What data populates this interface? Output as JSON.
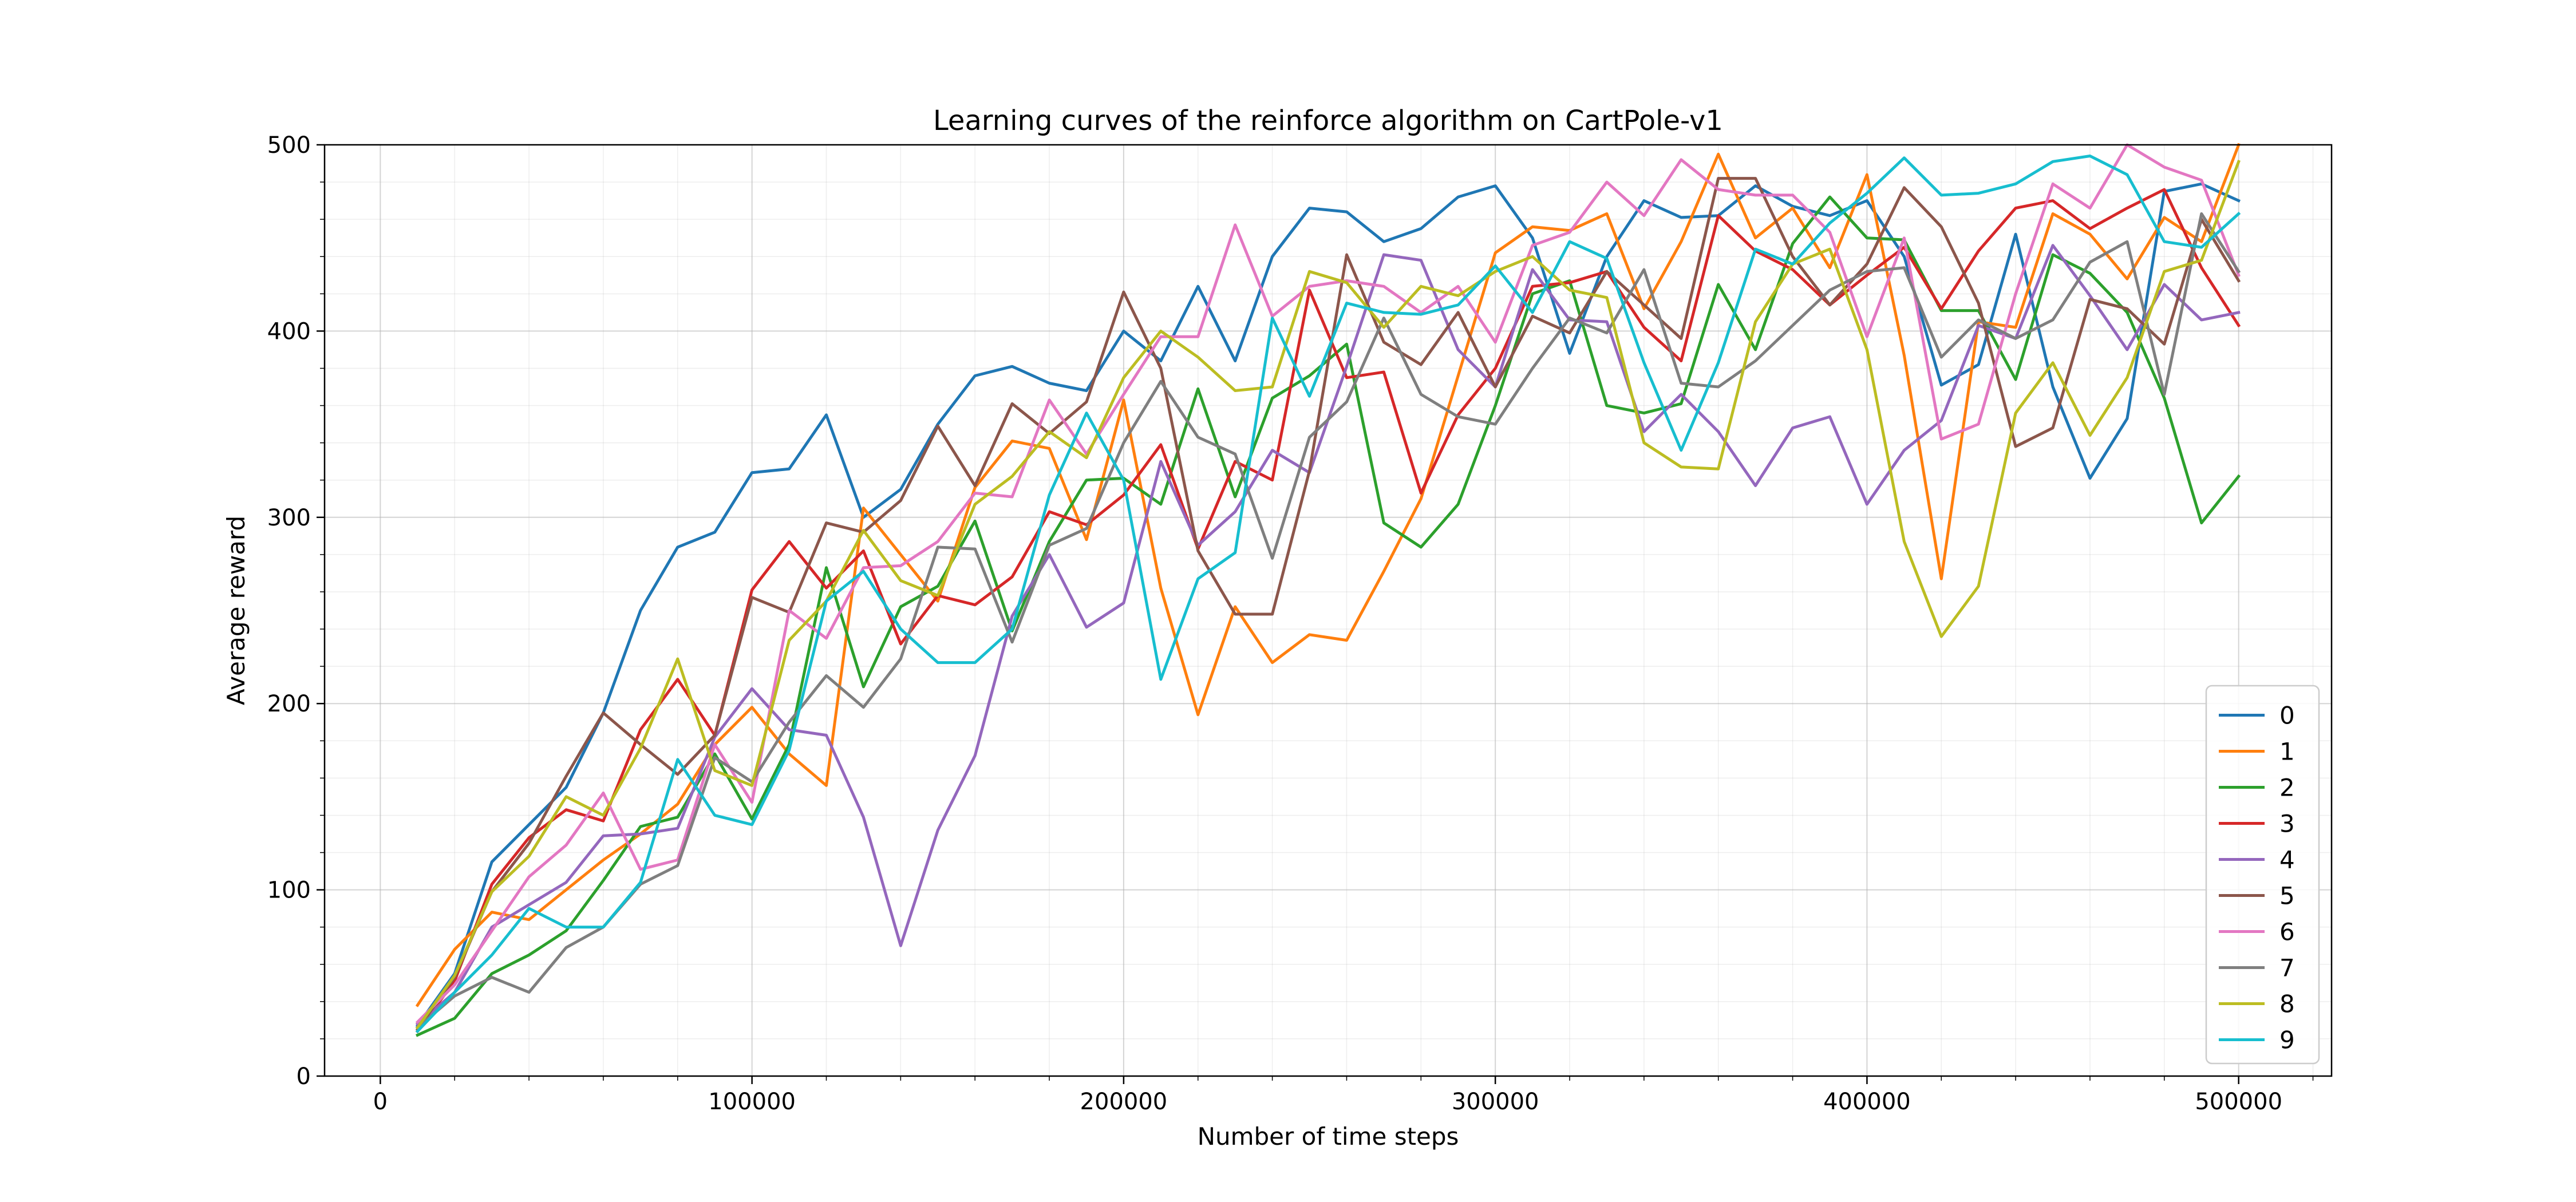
{
  "chart_data": {
    "type": "line",
    "title": "Learning curves of the reinforce algorithm on CartPole-v1",
    "xlabel": "Number of time steps",
    "ylabel": "Average reward",
    "xlim": [
      -15000,
      525000
    ],
    "ylim": [
      0,
      500
    ],
    "xticks": [
      0,
      100000,
      200000,
      300000,
      400000,
      500000
    ],
    "yticks": [
      0,
      100,
      200,
      300,
      400,
      500
    ],
    "grid": true,
    "minor_grid": true,
    "legend": "lower-right",
    "x": [
      10000,
      20000,
      30000,
      40000,
      50000,
      60000,
      70000,
      80000,
      90000,
      100000,
      110000,
      120000,
      130000,
      140000,
      150000,
      160000,
      170000,
      180000,
      190000,
      200000,
      210000,
      220000,
      230000,
      240000,
      250000,
      260000,
      270000,
      280000,
      290000,
      300000,
      310000,
      320000,
      330000,
      340000,
      350000,
      360000,
      370000,
      380000,
      390000,
      400000,
      410000,
      420000,
      430000,
      440000,
      450000,
      460000,
      470000,
      480000,
      490000,
      500000
    ],
    "series": [
      {
        "name": "0",
        "color": "#1f77b4",
        "values": [
          27,
          55,
          115,
          135,
          155,
          195,
          250,
          284,
          292,
          324,
          326,
          355,
          300,
          315,
          350,
          376,
          381,
          372,
          368,
          400,
          384,
          424,
          384,
          440,
          466,
          464,
          448,
          455,
          472,
          478,
          450,
          388,
          440,
          470,
          461,
          462,
          478,
          467,
          462,
          470,
          440,
          371,
          382,
          452,
          370,
          321,
          353,
          475,
          479,
          470
        ]
      },
      {
        "name": "1",
        "color": "#ff7f0e",
        "values": [
          38,
          68,
          88,
          84,
          100,
          116,
          130,
          146,
          178,
          198,
          173,
          156,
          305,
          280,
          255,
          316,
          341,
          337,
          288,
          363,
          262,
          194,
          252,
          222,
          237,
          234,
          271,
          310,
          376,
          442,
          456,
          454,
          463,
          412,
          448,
          495,
          450,
          466,
          434,
          484,
          387,
          267,
          405,
          402,
          463,
          452,
          428,
          461,
          448,
          500
        ]
      },
      {
        "name": "2",
        "color": "#2ca02c",
        "values": [
          22,
          31,
          55,
          65,
          78,
          105,
          134,
          139,
          173,
          138,
          178,
          273,
          209,
          252,
          263,
          298,
          239,
          287,
          320,
          321,
          307,
          369,
          311,
          364,
          376,
          393,
          297,
          284,
          307,
          360,
          420,
          427,
          360,
          356,
          361,
          425,
          390,
          447,
          472,
          450,
          449,
          411,
          411,
          374,
          441,
          431,
          410,
          364,
          297,
          322
        ]
      },
      {
        "name": "3",
        "color": "#d62728",
        "values": [
          24,
          51,
          103,
          128,
          143,
          137,
          186,
          213,
          183,
          261,
          287,
          262,
          282,
          232,
          258,
          253,
          268,
          303,
          296,
          312,
          339,
          283,
          330,
          320,
          422,
          375,
          378,
          313,
          355,
          380,
          424,
          426,
          432,
          402,
          384,
          462,
          443,
          433,
          414,
          430,
          445,
          412,
          443,
          466,
          470,
          455,
          466,
          476,
          434,
          403
        ]
      },
      {
        "name": "4",
        "color": "#9467bd",
        "values": [
          28,
          45,
          80,
          92,
          104,
          129,
          130,
          133,
          182,
          208,
          186,
          183,
          139,
          70,
          132,
          172,
          247,
          280,
          241,
          254,
          330,
          285,
          303,
          336,
          324,
          381,
          441,
          438,
          390,
          370,
          433,
          406,
          405,
          346,
          366,
          346,
          317,
          348,
          354,
          307,
          336,
          352,
          403,
          396,
          446,
          419,
          390,
          425,
          406,
          410
        ]
      },
      {
        "name": "5",
        "color": "#8c564b",
        "values": [
          25,
          53,
          99,
          125,
          161,
          195,
          178,
          162,
          183,
          257,
          249,
          297,
          292,
          309,
          349,
          317,
          361,
          345,
          362,
          421,
          380,
          282,
          248,
          248,
          325,
          441,
          394,
          382,
          410,
          370,
          408,
          399,
          432,
          414,
          396,
          482,
          482,
          440,
          414,
          436,
          477,
          456,
          415,
          338,
          348,
          417,
          412,
          393,
          460,
          427
        ]
      },
      {
        "name": "6",
        "color": "#e377c2",
        "values": [
          29,
          49,
          78,
          107,
          124,
          152,
          111,
          116,
          178,
          147,
          250,
          235,
          273,
          274,
          287,
          313,
          311,
          363,
          334,
          366,
          397,
          397,
          457,
          408,
          424,
          427,
          424,
          410,
          424,
          394,
          446,
          453,
          480,
          462,
          492,
          476,
          473,
          473,
          453,
          397,
          450,
          342,
          350,
          420,
          479,
          466,
          500,
          488,
          481,
          430
        ]
      },
      {
        "name": "7",
        "color": "#7f7f7f",
        "values": [
          26,
          43,
          53,
          45,
          69,
          80,
          103,
          113,
          171,
          158,
          190,
          215,
          198,
          224,
          284,
          283,
          233,
          285,
          294,
          340,
          373,
          343,
          334,
          278,
          343,
          362,
          407,
          366,
          354,
          350,
          380,
          407,
          399,
          433,
          372,
          370,
          384,
          403,
          422,
          432,
          434,
          386,
          406,
          396,
          406,
          437,
          448,
          366,
          463,
          432
        ]
      },
      {
        "name": "8",
        "color": "#bcbd22",
        "values": [
          26,
          54,
          99,
          118,
          150,
          140,
          176,
          224,
          164,
          156,
          234,
          255,
          293,
          266,
          258,
          307,
          322,
          346,
          332,
          375,
          400,
          386,
          368,
          370,
          432,
          426,
          402,
          424,
          419,
          432,
          440,
          422,
          418,
          340,
          327,
          326,
          405,
          436,
          444,
          390,
          287,
          236,
          263,
          356,
          383,
          344,
          375,
          432,
          438,
          491
        ]
      },
      {
        "name": "9",
        "color": "#17becf",
        "values": [
          24,
          45,
          65,
          90,
          80,
          80,
          104,
          170,
          140,
          135,
          175,
          255,
          271,
          240,
          222,
          222,
          240,
          312,
          356,
          320,
          213,
          267,
          281,
          407,
          365,
          415,
          410,
          409,
          414,
          435,
          410,
          448,
          439,
          383,
          336,
          383,
          444,
          436,
          458,
          474,
          493,
          473,
          474,
          479,
          491,
          494,
          484,
          448,
          445,
          463
        ]
      }
    ]
  }
}
